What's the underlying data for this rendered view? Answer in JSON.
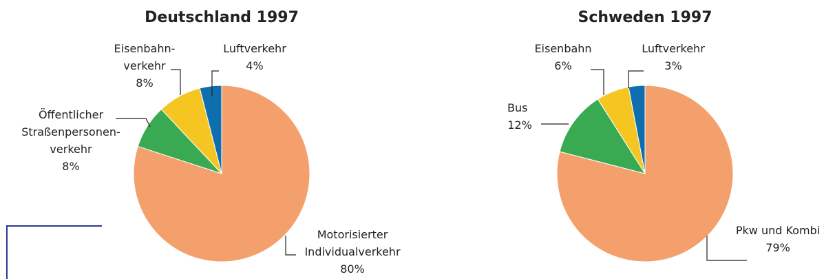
{
  "chart_data": [
    {
      "type": "pie",
      "title": "Deutschland 1997",
      "categories": [
        "Motorisierter\nIndividualverkehr",
        "Öffentlicher\nStraßenpersonen-\nverkehr",
        "Eisenbahn-\nverkehr",
        "Luftverkehr"
      ],
      "values": [
        80,
        8,
        8,
        4
      ],
      "value_labels": [
        "80%",
        "8%",
        "8%",
        "4%"
      ],
      "colors": [
        "#f4a06c",
        "#3aaa52",
        "#f5c621",
        "#0f6fae"
      ]
    },
    {
      "type": "pie",
      "title": "Schweden 1997",
      "categories": [
        "Pkw und Kombi",
        "Bus",
        "Eisenbahn",
        "Luftverkehr"
      ],
      "values": [
        79,
        12,
        6,
        3
      ],
      "value_labels": [
        "79%",
        "12%",
        "6%",
        "3%"
      ],
      "colors": [
        "#f4a06c",
        "#3aaa52",
        "#f5c621",
        "#0f6fae"
      ]
    }
  ]
}
